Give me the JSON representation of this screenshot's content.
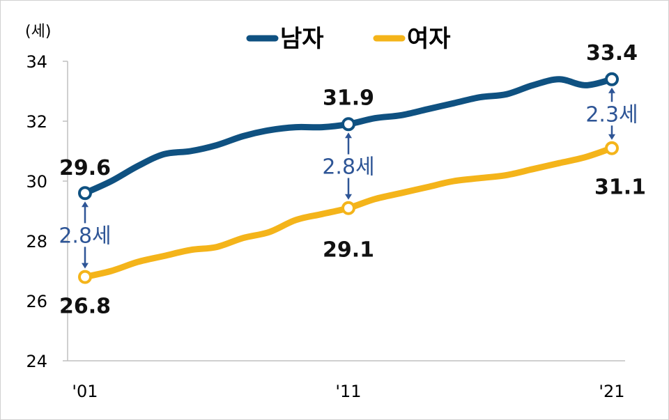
{
  "chart_data": {
    "type": "line",
    "unit_label": "(세)",
    "x_ticks": [
      "'01",
      "'11",
      "'21"
    ],
    "ylim": [
      24,
      34
    ],
    "y_ticks": [
      24,
      26,
      28,
      30,
      32,
      34
    ],
    "legend_position": "top-center",
    "series": [
      {
        "name": "남자",
        "color": "#0f5181",
        "points": [
          {
            "year": 2001,
            "value": 29.6
          },
          {
            "year": 2002,
            "value": 30.0
          },
          {
            "year": 2003,
            "value": 30.5
          },
          {
            "year": 2004,
            "value": 30.9
          },
          {
            "year": 2005,
            "value": 31.0
          },
          {
            "year": 2006,
            "value": 31.2
          },
          {
            "year": 2007,
            "value": 31.5
          },
          {
            "year": 2008,
            "value": 31.7
          },
          {
            "year": 2009,
            "value": 31.8
          },
          {
            "year": 2010,
            "value": 31.8
          },
          {
            "year": 2011,
            "value": 31.9
          },
          {
            "year": 2012,
            "value": 32.1
          },
          {
            "year": 2013,
            "value": 32.2
          },
          {
            "year": 2014,
            "value": 32.4
          },
          {
            "year": 2015,
            "value": 32.6
          },
          {
            "year": 2016,
            "value": 32.8
          },
          {
            "year": 2017,
            "value": 32.9
          },
          {
            "year": 2018,
            "value": 33.2
          },
          {
            "year": 2019,
            "value": 33.4
          },
          {
            "year": 2020,
            "value": 33.2
          },
          {
            "year": 2021,
            "value": 33.4
          }
        ]
      },
      {
        "name": "여자",
        "color": "#f4b41a",
        "points": [
          {
            "year": 2001,
            "value": 26.8
          },
          {
            "year": 2002,
            "value": 27.0
          },
          {
            "year": 2003,
            "value": 27.3
          },
          {
            "year": 2004,
            "value": 27.5
          },
          {
            "year": 2005,
            "value": 27.7
          },
          {
            "year": 2006,
            "value": 27.8
          },
          {
            "year": 2007,
            "value": 28.1
          },
          {
            "year": 2008,
            "value": 28.3
          },
          {
            "year": 2009,
            "value": 28.7
          },
          {
            "year": 2010,
            "value": 28.9
          },
          {
            "year": 2011,
            "value": 29.1
          },
          {
            "year": 2012,
            "value": 29.4
          },
          {
            "year": 2013,
            "value": 29.6
          },
          {
            "year": 2014,
            "value": 29.8
          },
          {
            "year": 2015,
            "value": 30.0
          },
          {
            "year": 2016,
            "value": 30.1
          },
          {
            "year": 2017,
            "value": 30.2
          },
          {
            "year": 2018,
            "value": 30.4
          },
          {
            "year": 2019,
            "value": 30.6
          },
          {
            "year": 2020,
            "value": 30.8
          },
          {
            "year": 2021,
            "value": 31.1
          }
        ]
      }
    ],
    "highlight_years": [
      2001,
      2011,
      2021
    ],
    "data_labels": {
      "남자": [
        "29.6",
        "31.9",
        "33.4"
      ],
      "여자": [
        "26.8",
        "29.1",
        "31.1"
      ]
    },
    "gap_annotations": [
      {
        "year": 2001,
        "label": "2.8세"
      },
      {
        "year": 2011,
        "label": "2.8세"
      },
      {
        "year": 2021,
        "label": "2.3세"
      }
    ],
    "grid": false
  }
}
